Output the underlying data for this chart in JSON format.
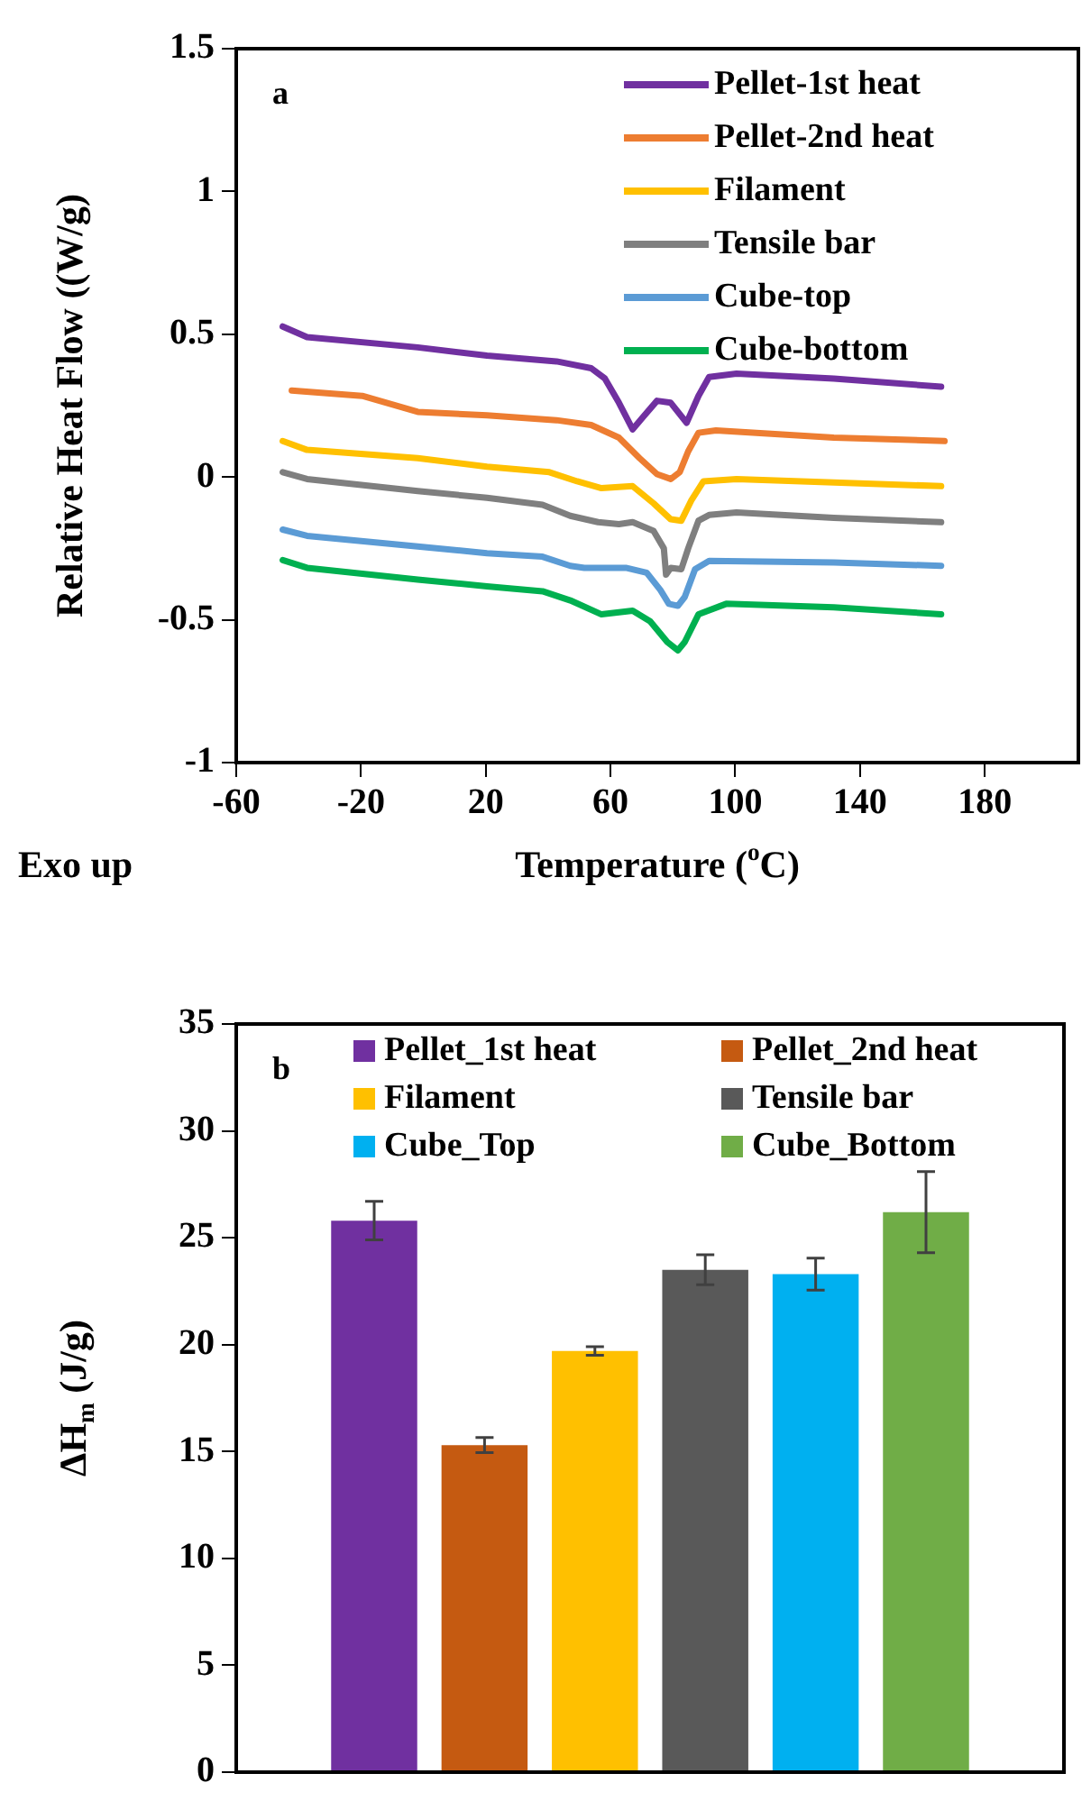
{
  "chart_data": [
    {
      "type": "line",
      "xlabel": "Temperature ($^{o}$C)",
      "ylabel": "Relative Heat Flow ((W/g)",
      "xlim": [
        -60,
        210
      ],
      "ylim": [
        -1,
        1.5
      ],
      "xticks": [
        -60,
        -20,
        20,
        60,
        100,
        140,
        180
      ],
      "yticks": [
        -1,
        -0.5,
        0,
        0.5,
        1,
        1.5
      ],
      "grid": false,
      "legend": "top right",
      "marker": "none",
      "line_style": "solid",
      "annotations": [
        "a",
        "Exo up"
      ],
      "series": [
        {
          "name": "Pellet-1st heat",
          "color": "#7030a0",
          "x": [
            -45.1,
            -37.3,
            -1.8,
            20.4,
            42.7,
            53.8,
            58.2,
            62.7,
            67.1,
            70.4,
            74.9,
            79.3,
            84.4,
            88.2,
            91.6,
            100.4,
            131.6,
            166
          ],
          "values": [
            0.527,
            0.49,
            0.454,
            0.425,
            0.405,
            0.381,
            0.345,
            0.26,
            0.167,
            0.21,
            0.267,
            0.26,
            0.19,
            0.284,
            0.35,
            0.362,
            0.345,
            0.316
          ]
        },
        {
          "name": "Pellet-2nd heat",
          "color": "#ed7d31",
          "x": [
            -42.2,
            -19.6,
            -1.8,
            20.4,
            42.7,
            53.8,
            62.7,
            69.3,
            74.9,
            79.3,
            82.2,
            84.9,
            88.2,
            93.8,
            131.6,
            167.1
          ],
          "values": [
            0.303,
            0.284,
            0.228,
            0.216,
            0.199,
            0.182,
            0.138,
            0.066,
            0.01,
            -0.007,
            0.017,
            0.09,
            0.155,
            0.163,
            0.138,
            0.126
          ]
        },
        {
          "name": "Filament",
          "color": "#ffc000",
          "x": [
            -45.1,
            -37.3,
            -1.8,
            20.4,
            40.4,
            49.3,
            57.1,
            67.1,
            73.8,
            79.3,
            82.7,
            86,
            89.8,
            100.4,
            131.6,
            166
          ],
          "values": [
            0.126,
            0.095,
            0.066,
            0.036,
            0.017,
            -0.015,
            -0.039,
            -0.032,
            -0.092,
            -0.148,
            -0.153,
            -0.08,
            -0.015,
            -0.007,
            -0.019,
            -0.032
          ]
        },
        {
          "name": "Tensile bar",
          "color": "#7f7f7f",
          "x": [
            -45.1,
            -37.3,
            -1.8,
            20.4,
            38.2,
            47.1,
            56,
            62.7,
            67.1,
            73.8,
            77.1,
            77.8,
            79.3,
            82.7,
            84.9,
            88.2,
            91.6,
            100.4,
            131.6,
            166
          ],
          "values": [
            0.017,
            -0.007,
            -0.049,
            -0.073,
            -0.097,
            -0.136,
            -0.158,
            -0.165,
            -0.158,
            -0.189,
            -0.25,
            -0.342,
            -0.318,
            -0.323,
            -0.25,
            -0.153,
            -0.133,
            -0.124,
            -0.143,
            -0.158
          ]
        },
        {
          "name": "Cube-top",
          "color": "#5b9bd5",
          "x": [
            -45.1,
            -37.3,
            -1.8,
            20.4,
            38.2,
            47.1,
            51.6,
            64.9,
            71.6,
            76,
            78.7,
            81.6,
            83.8,
            87.1,
            91.6,
            131.6,
            166
          ],
          "values": [
            -0.184,
            -0.206,
            -0.243,
            -0.267,
            -0.279,
            -0.311,
            -0.318,
            -0.318,
            -0.335,
            -0.396,
            -0.444,
            -0.451,
            -0.42,
            -0.323,
            -0.294,
            -0.299,
            -0.311
          ]
        },
        {
          "name": "Cube-bottom",
          "color": "#00b050",
          "x": [
            -45.1,
            -37.3,
            -1.8,
            20.4,
            38.2,
            47.1,
            57.1,
            67.1,
            72.7,
            78.2,
            81.6,
            83.8,
            88.2,
            97.1,
            131.6,
            166
          ],
          "values": [
            -0.291,
            -0.318,
            -0.359,
            -0.383,
            -0.4,
            -0.432,
            -0.481,
            -0.468,
            -0.505,
            -0.578,
            -0.607,
            -0.578,
            -0.481,
            -0.444,
            -0.456,
            -0.481
          ]
        }
      ]
    },
    {
      "type": "bar",
      "ylabel": "ΔH$_{m}$ (J/g)",
      "categories": [
        null
      ],
      "ylim": [
        0,
        35
      ],
      "yticks": [
        0,
        5,
        10,
        15,
        20,
        25,
        30,
        35
      ],
      "grid": false,
      "legend": "top",
      "tick_labels": "y",
      "annotations": [
        "b"
      ],
      "series": [
        {
          "name": "Pellet_1st heat",
          "color": "#7030a0",
          "values": [
            25.8
          ],
          "errors": [
            0.9
          ]
        },
        {
          "name": "Pellet_2nd heat",
          "color": "#c55a11",
          "values": [
            15.3
          ],
          "errors": [
            0.35
          ]
        },
        {
          "name": "Filament",
          "color": "#ffc000",
          "values": [
            19.7
          ],
          "errors": [
            0.2
          ]
        },
        {
          "name": "Tensile bar",
          "color": "#595959",
          "values": [
            23.5
          ],
          "errors": [
            0.7
          ]
        },
        {
          "name": "Cube_Top",
          "color": "#00b0f0",
          "values": [
            23.3
          ],
          "errors": [
            0.75
          ]
        },
        {
          "name": "Cube_Bottom",
          "color": "#70ad47",
          "values": [
            26.2
          ],
          "errors": [
            1.9
          ]
        }
      ]
    }
  ]
}
